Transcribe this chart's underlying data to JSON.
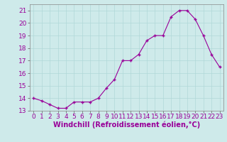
{
  "x": [
    0,
    1,
    2,
    3,
    4,
    5,
    6,
    7,
    8,
    9,
    10,
    11,
    12,
    13,
    14,
    15,
    16,
    17,
    18,
    19,
    20,
    21,
    22,
    23
  ],
  "y": [
    14.0,
    13.8,
    13.5,
    13.2,
    13.2,
    13.7,
    13.7,
    13.7,
    14.0,
    14.8,
    15.5,
    17.0,
    17.0,
    17.5,
    18.6,
    19.0,
    19.0,
    20.5,
    21.0,
    21.0,
    20.3,
    19.0,
    17.5,
    16.5
  ],
  "ylim": [
    13,
    21.5
  ],
  "yticks": [
    13,
    14,
    15,
    16,
    17,
    18,
    19,
    20,
    21
  ],
  "xticks": [
    0,
    1,
    2,
    3,
    4,
    5,
    6,
    7,
    8,
    9,
    10,
    11,
    12,
    13,
    14,
    15,
    16,
    17,
    18,
    19,
    20,
    21,
    22,
    23
  ],
  "xlabel": "Windchill (Refroidissement éolien,°C)",
  "line_color": "#990099",
  "marker": "P",
  "bg_color": "#ceeaea",
  "grid_color": "#b0d8d8",
  "tick_label_fontsize": 6.5,
  "xlabel_fontsize": 7
}
